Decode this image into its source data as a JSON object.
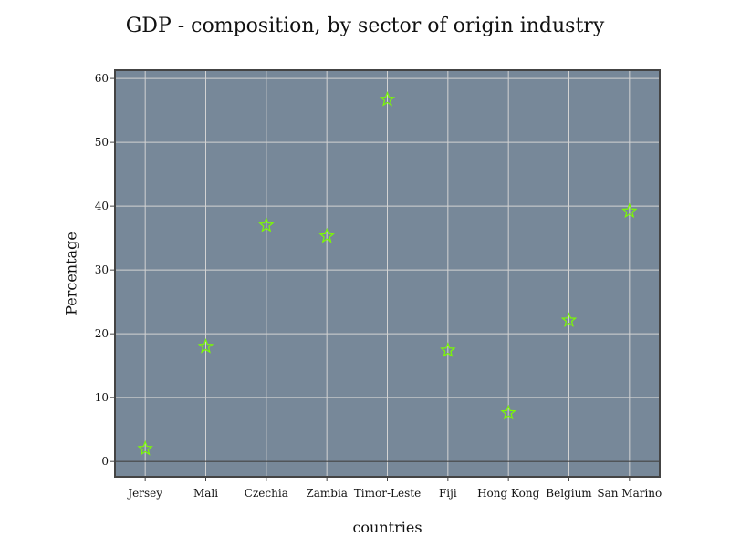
{
  "chart_data": {
    "type": "scatter",
    "title": "GDP - composition, by sector of origin industry",
    "xlabel": "countries",
    "ylabel": "Percentage",
    "categories": [
      "Jersey",
      "Mali",
      "Czechia",
      "Zambia",
      "Timor-Leste",
      "Fiji",
      "Hong Kong",
      "Belgium",
      "San Marino"
    ],
    "series": [
      {
        "values": [
          2,
          18,
          37,
          35.3,
          56.7,
          17.4,
          7.6,
          22.1,
          39.2
        ]
      }
    ],
    "ylim": [
      -2.4,
      61.3
    ],
    "yticks": [
      0,
      10,
      20,
      30,
      40,
      50,
      60
    ],
    "grid": true,
    "marker": "star",
    "colors": {
      "plot_background": "#778899",
      "grid": "#d3d3d3",
      "marker": "#7cfc00",
      "zero_line": "#444444",
      "frame": "#444444"
    }
  }
}
